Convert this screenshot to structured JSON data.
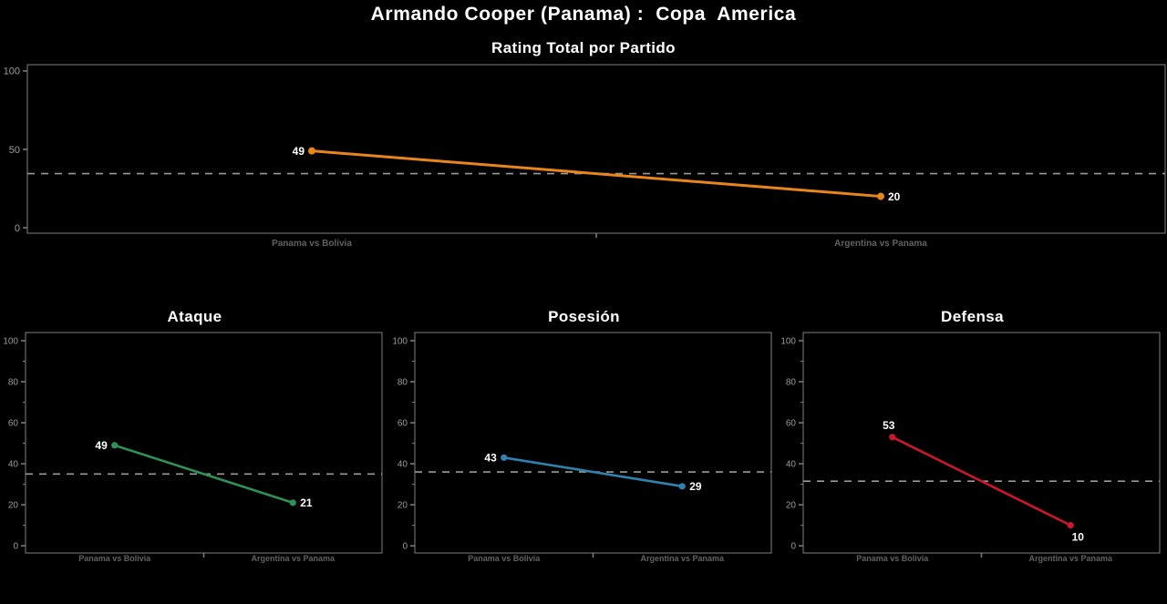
{
  "header": {
    "title": "Armando Cooper (Panama) :  Copa  America"
  },
  "categories": [
    "Panama vs Bolivia",
    "Argentina vs Panama"
  ],
  "colors": {
    "background": "#000000",
    "axis": "#7F7F7F",
    "tick_label": "#9B9B9B",
    "category_label": "#616161",
    "mean_line": "#9A9A9A",
    "value_label": "#FFFFFF",
    "title": "#FFFFFF"
  },
  "chart_data": [
    {
      "type": "line",
      "title": "Rating Total por Partido",
      "categories": [
        "Panama vs Bolivia",
        "Argentina vs Panama"
      ],
      "series": [
        {
          "name": "Rating Total",
          "color": "#E8861A",
          "values": [
            49,
            20
          ]
        }
      ],
      "mean_line": 34.5,
      "ylim": [
        0,
        100
      ],
      "yticks": [
        0,
        50,
        100
      ],
      "minor_yticks": [],
      "value_label_pos": [
        "left",
        "right"
      ],
      "grid": "off",
      "legend": "none"
    },
    {
      "type": "line",
      "title": "Ataque",
      "categories": [
        "Panama vs Bolivia",
        "Argentina vs Panama"
      ],
      "series": [
        {
          "name": "Ataque",
          "color": "#2F9156",
          "values": [
            49,
            21
          ]
        }
      ],
      "mean_line": 35,
      "ylim": [
        0,
        100
      ],
      "yticks": [
        0,
        20,
        40,
        60,
        80,
        100
      ],
      "minor_yticks": [
        10,
        30,
        50,
        70,
        90
      ],
      "value_label_pos": [
        "left",
        "right"
      ],
      "grid": "off",
      "legend": "none"
    },
    {
      "type": "line",
      "title": "Posesión",
      "categories": [
        "Panama vs Bolivia",
        "Argentina vs Panama"
      ],
      "series": [
        {
          "name": "Posesión",
          "color": "#2F81B0",
          "values": [
            43,
            29
          ]
        }
      ],
      "mean_line": 36,
      "ylim": [
        0,
        100
      ],
      "yticks": [
        0,
        20,
        40,
        60,
        80,
        100
      ],
      "minor_yticks": [
        10,
        30,
        50,
        70,
        90
      ],
      "value_label_pos": [
        "left",
        "right"
      ],
      "grid": "off",
      "legend": "none"
    },
    {
      "type": "line",
      "title": "Defensa",
      "categories": [
        "Panama vs Bolivia",
        "Argentina vs Panama"
      ],
      "series": [
        {
          "name": "Defensa",
          "color": "#C9182B",
          "values": [
            53,
            10
          ]
        }
      ],
      "mean_line": 31.5,
      "ylim": [
        0,
        100
      ],
      "yticks": [
        0,
        20,
        40,
        60,
        80,
        100
      ],
      "minor_yticks": [
        10,
        30,
        50,
        70,
        90
      ],
      "value_label_pos": [
        "above",
        "below"
      ],
      "grid": "off",
      "legend": "none"
    }
  ]
}
